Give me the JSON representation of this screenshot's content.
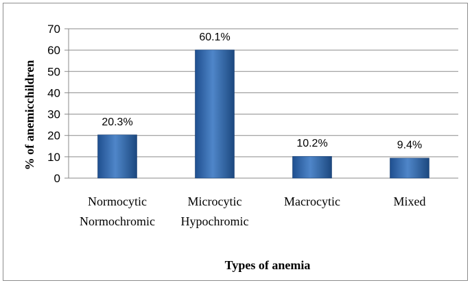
{
  "chart_data": {
    "type": "bar",
    "categories": [
      [
        "Normocytic",
        "Normochromic"
      ],
      [
        "Microcytic",
        "Hypochromic"
      ],
      [
        "Macrocytic"
      ],
      [
        "Mixed"
      ]
    ],
    "values": [
      20.3,
      60.1,
      10.2,
      9.4
    ],
    "data_labels": [
      "20.3%",
      "60.1%",
      "10.2%",
      "9.4%"
    ],
    "title": "",
    "xlabel": "Types of anemia",
    "ylabel": "% of anemicchildren",
    "ylim": [
      0,
      70
    ],
    "yticks": [
      0,
      10,
      20,
      30,
      40,
      50,
      60,
      70
    ],
    "grid": true,
    "legend": "none",
    "bar_color": "#2e5f9e"
  }
}
